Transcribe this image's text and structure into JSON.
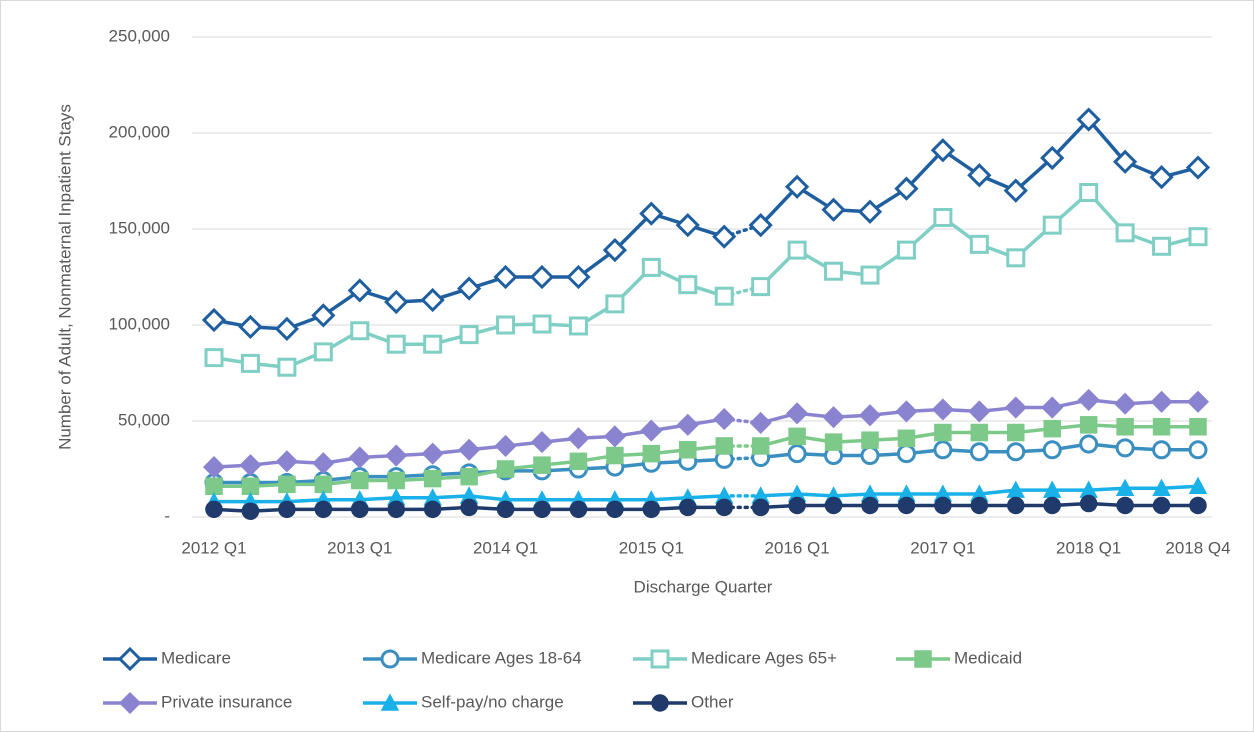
{
  "chart_data": {
    "type": "line",
    "y_axis_label": "Number of Adult, Nonmaternal Inpatient Stays",
    "x_axis_label": "Discharge Quarter",
    "categories": [
      "2012 Q1",
      null,
      null,
      null,
      "2013 Q1",
      null,
      null,
      null,
      "2014 Q1",
      null,
      null,
      null,
      "2015 Q1",
      null,
      null,
      null,
      "2016 Q1",
      null,
      null,
      null,
      "2017 Q1",
      null,
      null,
      null,
      "2018 Q1",
      null,
      null,
      "2018 Q4"
    ],
    "ylim": [
      0,
      250000
    ],
    "yticks": [
      {
        "value": 0,
        "label": "-"
      },
      {
        "value": 50000,
        "label": "50,000"
      },
      {
        "value": 100000,
        "label": "100,000"
      },
      {
        "value": 150000,
        "label": "150,000"
      },
      {
        "value": 200000,
        "label": "200,000"
      },
      {
        "value": 250000,
        "label": "250,000"
      }
    ],
    "grid": true,
    "dotted_between": [
      14,
      15
    ],
    "legend": "bottom",
    "series": [
      {
        "name": "Medicare",
        "color": "#1f5fa0",
        "marker": "diamond-open",
        "values": [
          102600,
          99000,
          98000,
          105000,
          118000,
          112000,
          113000,
          119000,
          125000,
          125000,
          125000,
          139000,
          158000,
          152000,
          146000,
          152000,
          172000,
          160000,
          159000,
          171000,
          191000,
          178000,
          170000,
          187000,
          207000,
          185000,
          177000,
          182000
        ]
      },
      {
        "name": "Medicare Ages 18-64",
        "color": "#3a8fc0",
        "marker": "circle-open",
        "values": [
          18000,
          18000,
          18000,
          19000,
          21000,
          21000,
          22000,
          23000,
          24000,
          24000,
          25000,
          26000,
          28000,
          29000,
          30000,
          31000,
          33000,
          32000,
          32000,
          33000,
          35000,
          34000,
          34000,
          35000,
          38000,
          36000,
          35000,
          35000
        ]
      },
      {
        "name": "Medicare Ages 65+",
        "color": "#7fcfc4",
        "marker": "square-open",
        "values": [
          83000,
          80000,
          78000,
          86000,
          97000,
          90000,
          90000,
          95000,
          100000,
          100500,
          99500,
          111000,
          130000,
          121000,
          115000,
          120000,
          139000,
          128000,
          126000,
          139000,
          156000,
          142000,
          135000,
          152000,
          169000,
          148000,
          141000,
          146000
        ]
      },
      {
        "name": "Medicaid",
        "color": "#7cc98a",
        "marker": "square",
        "values": [
          16000,
          16000,
          17000,
          17000,
          19000,
          19000,
          20000,
          21000,
          25000,
          27000,
          29000,
          32000,
          33000,
          35000,
          37000,
          37000,
          42000,
          39000,
          40000,
          41000,
          44000,
          44000,
          44000,
          46000,
          48000,
          47000,
          47000,
          47000
        ]
      },
      {
        "name": "Private insurance",
        "color": "#8a84d0",
        "marker": "diamond",
        "values": [
          26000,
          27000,
          29000,
          28000,
          31000,
          32000,
          33000,
          35000,
          37000,
          39000,
          41000,
          42000,
          45000,
          48000,
          51000,
          49000,
          54000,
          52000,
          53000,
          55000,
          56000,
          55000,
          57000,
          57000,
          61000,
          59000,
          60000,
          60000
        ]
      },
      {
        "name": "Self-pay/no charge",
        "color": "#1ab0e8",
        "marker": "triangle",
        "values": [
          8000,
          8000,
          8000,
          9000,
          9000,
          10000,
          10000,
          11000,
          9000,
          9000,
          9000,
          9000,
          9000,
          10000,
          11000,
          11000,
          12000,
          11000,
          12000,
          12000,
          12000,
          12000,
          14000,
          14000,
          14000,
          15000,
          15000,
          16000
        ]
      },
      {
        "name": "Other",
        "color": "#1f3a6b",
        "marker": "circle",
        "values": [
          4000,
          3000,
          4000,
          4000,
          4000,
          4000,
          4000,
          5000,
          4000,
          4000,
          4000,
          4000,
          4000,
          5000,
          5000,
          5000,
          6000,
          6000,
          6000,
          6000,
          6000,
          6000,
          6000,
          6000,
          7000,
          6000,
          6000,
          6000
        ]
      }
    ]
  }
}
